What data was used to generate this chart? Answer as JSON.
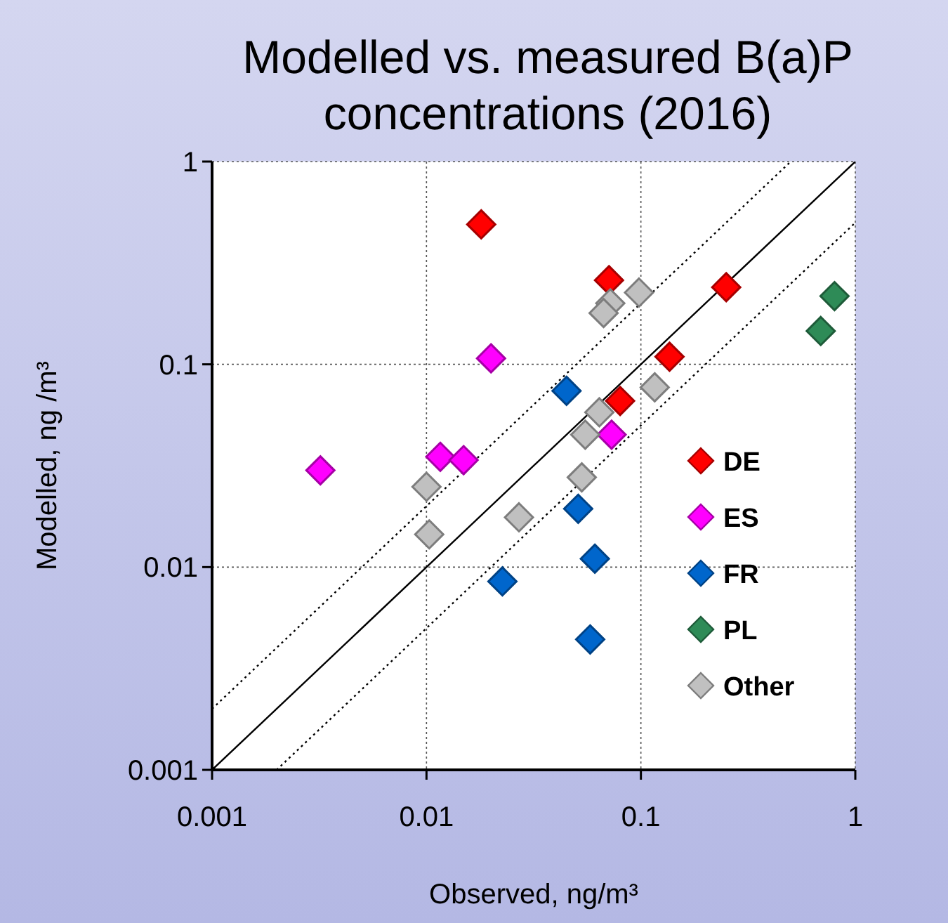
{
  "chart_data": {
    "type": "scatter",
    "title": "Modelled vs. measured B(a)P\nconcentrations (2016)",
    "xlabel": "Observed, ng/m³",
    "ylabel": "Modelled, ng /m³",
    "log": "xy",
    "xlim": [
      0.001,
      1
    ],
    "ylim": [
      0.001,
      1
    ],
    "xticks": [
      0.001,
      0.01,
      0.1,
      1
    ],
    "yticks": [
      0.001,
      0.01,
      0.1,
      1
    ],
    "grid": true,
    "legend": "bottom right",
    "marker": "diamond",
    "series": [
      {
        "type": "line",
        "color": "#000000",
        "line_style": "solid",
        "marker": "none",
        "x": [
          0.001,
          1
        ],
        "values": [
          0.001,
          1
        ]
      },
      {
        "type": "line",
        "color": "#000000",
        "line_style": "dotted",
        "marker": "none",
        "x": [
          0.001,
          0.5
        ],
        "values": [
          0.002,
          1
        ]
      },
      {
        "type": "line",
        "color": "#000000",
        "line_style": "dotted",
        "marker": "none",
        "x": [
          0.002,
          1
        ],
        "values": [
          0.001,
          0.5
        ]
      },
      {
        "name": "DE",
        "color": "#ff0000",
        "x": [
          0.018,
          0.071,
          0.25,
          0.136,
          0.08
        ],
        "values": [
          0.49,
          0.26,
          0.24,
          0.109,
          0.066
        ]
      },
      {
        "name": "ES",
        "color": "#ff00ff",
        "x": [
          0.02,
          0.073,
          0.0116,
          0.0149,
          0.0032
        ],
        "values": [
          0.107,
          0.045,
          0.035,
          0.0337,
          0.03
        ]
      },
      {
        "name": "FR",
        "color": "#0066cc",
        "x": [
          0.045,
          0.051,
          0.061,
          0.0226,
          0.058
        ],
        "values": [
          0.074,
          0.0194,
          0.011,
          0.0085,
          0.0044
        ]
      },
      {
        "name": "PL",
        "color": "#2e8b57",
        "x": [
          0.8,
          0.69
        ],
        "values": [
          0.217,
          0.146
        ]
      },
      {
        "name": "Other",
        "color": "#c0c0c0",
        "x": [
          0.098,
          0.072,
          0.067,
          0.116,
          0.064,
          0.055,
          0.053,
          0.01,
          0.027,
          0.0103
        ],
        "values": [
          0.226,
          0.2,
          0.179,
          0.077,
          0.058,
          0.045,
          0.0277,
          0.0249,
          0.0176,
          0.0145
        ]
      }
    ]
  }
}
